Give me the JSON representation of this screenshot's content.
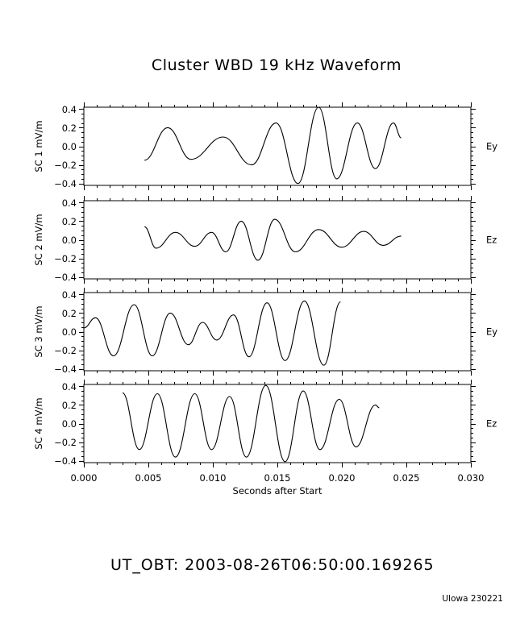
{
  "title": "Cluster WBD 19 kHz Waveform",
  "ut_obt": "UT_OBT:   2003-08-26T06:50:00.169265",
  "footer": "UIowa 230221",
  "colors": {
    "background": "#ffffff",
    "line": "#000000",
    "axes": "#000000"
  },
  "chart_data": {
    "type": "line",
    "title": "Cluster WBD 19 kHz Waveform",
    "xlabel": "Seconds after Start",
    "xlim": [
      0.0,
      0.03
    ],
    "x_ticks": [
      "0.000",
      "0.005",
      "0.010",
      "0.015",
      "0.020",
      "0.025",
      "0.030"
    ],
    "x_tick_values": [
      0.0,
      0.005,
      0.01,
      0.015,
      0.02,
      0.025,
      0.03
    ],
    "y_ticks": [
      "0.4",
      "0.2",
      "0.0",
      "-0.2",
      "-0.4"
    ],
    "y_tick_values": [
      0.4,
      0.2,
      0.0,
      -0.2,
      -0.4
    ],
    "ylim": [
      -0.42,
      0.42
    ],
    "grid": false,
    "annotation": "UT_OBT:   2003-08-26T06:50:00.169265",
    "panels": [
      {
        "ylabel": "SC 1  mV/m",
        "component": "Ey",
        "x": [
          0.0047,
          0.0065,
          0.0083,
          0.0108,
          0.013,
          0.0149,
          0.0166,
          0.0182,
          0.0196,
          0.0212,
          0.0226,
          0.024,
          0.0246
        ],
        "y": [
          -0.15,
          0.2,
          -0.14,
          0.1,
          -0.2,
          0.25,
          -0.4,
          0.42,
          -0.35,
          0.25,
          -0.24,
          0.25,
          0.09
        ]
      },
      {
        "ylabel": "SC 2  mV/m",
        "component": "Ez",
        "x": [
          0.0047,
          0.0056,
          0.0071,
          0.0086,
          0.0099,
          0.011,
          0.0122,
          0.0135,
          0.0148,
          0.0164,
          0.0182,
          0.02,
          0.0217,
          0.0232,
          0.0246
        ],
        "y": [
          0.14,
          -0.09,
          0.08,
          -0.07,
          0.08,
          -0.13,
          0.2,
          -0.22,
          0.22,
          -0.13,
          0.11,
          -0.08,
          0.09,
          -0.06,
          0.04
        ]
      },
      {
        "ylabel": "SC 3  mV/m",
        "component": "Ey",
        "x": [
          0.0,
          0.0009,
          0.0023,
          0.0039,
          0.0053,
          0.0067,
          0.0081,
          0.0092,
          0.0103,
          0.0116,
          0.0128,
          0.0142,
          0.0156,
          0.0171,
          0.0186,
          0.0199
        ],
        "y": [
          0.04,
          0.15,
          -0.26,
          0.29,
          -0.26,
          0.2,
          -0.14,
          0.1,
          -0.09,
          0.18,
          -0.27,
          0.31,
          -0.31,
          0.33,
          -0.36,
          0.32
        ]
      },
      {
        "ylabel": "SC 4  mV/m",
        "component": "Ez",
        "x": [
          0.003,
          0.0043,
          0.0057,
          0.0071,
          0.0086,
          0.0099,
          0.0113,
          0.0126,
          0.0141,
          0.0156,
          0.017,
          0.0183,
          0.0198,
          0.0211,
          0.0226,
          0.0229
        ],
        "y": [
          0.33,
          -0.28,
          0.32,
          -0.36,
          0.32,
          -0.28,
          0.29,
          -0.36,
          0.41,
          -0.41,
          0.35,
          -0.28,
          0.26,
          -0.25,
          0.2,
          0.17
        ]
      }
    ]
  }
}
